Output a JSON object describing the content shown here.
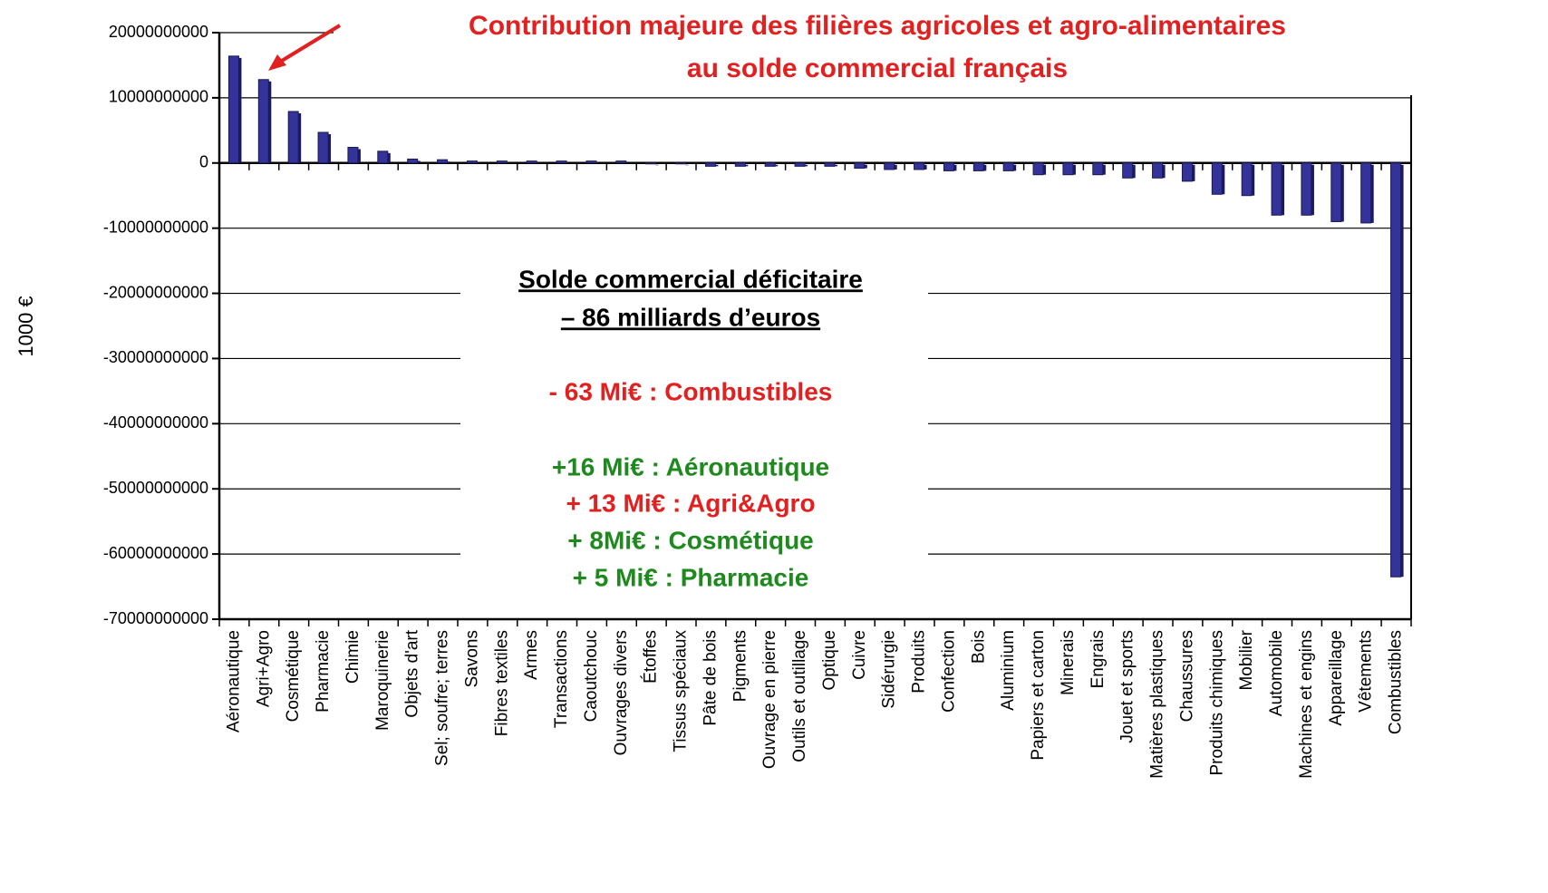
{
  "chart_data": {
    "type": "bar",
    "title": [
      "Contribution majeure des filières agricoles et agro-alimentaires",
      "au solde commercial français"
    ],
    "y_label": "1000 €",
    "categories": [
      "Aéronautique",
      "Agri+Agro",
      "Cosmétique",
      "Pharmacie",
      "Chimie",
      "Maroquinerie",
      "Objets d'art",
      "Sel; soufre; terres",
      "Savons",
      "Fibres textiles",
      "Armes",
      "Transactions",
      "Caoutchouc",
      "Ouvrages divers",
      "Étoffes",
      "Tissus spéciaux",
      "Pâte de bois",
      "Pigments",
      "Ouvrage en pierre",
      "Outils et outillage",
      "Optique",
      "Cuivre",
      "Sidérurgie",
      "Produits",
      "Confection",
      "Bois",
      "Aluminium",
      "Papiers et carton",
      "Minerais",
      "Engrais",
      "Jouet et sports",
      "Matières plastiques",
      "Chaussures",
      "Produits chimiques",
      "Mobilier",
      "Automobile",
      "Machines et engins",
      "Appareillage",
      "Vêtements",
      "Combustibles"
    ],
    "values": [
      16400000000,
      12800000000,
      7900000000,
      4700000000,
      2400000000,
      1800000000,
      600000000,
      500000000,
      300000000,
      300000000,
      300000000,
      300000000,
      300000000,
      300000000,
      0,
      -100000000,
      -500000000,
      -500000000,
      -500000000,
      -500000000,
      -500000000,
      -800000000,
      -1000000000,
      -1000000000,
      -1200000000,
      -1200000000,
      -1200000000,
      -1800000000,
      -1800000000,
      -1800000000,
      -2300000000,
      -2300000000,
      -2800000000,
      -4800000000,
      -5000000000,
      -8000000000,
      -8000000000,
      -9000000000,
      -9200000000,
      -63500000000
    ],
    "color": "#33339a",
    "ylim": [
      -70000000000,
      20000000000
    ],
    "yticks": [
      20000000000,
      10000000000,
      0,
      -10000000000,
      -20000000000,
      -30000000000,
      -40000000000,
      -50000000000,
      -60000000000,
      -70000000000
    ],
    "grid": true,
    "annotations": [
      {
        "text": "Solde commercial déficitaire",
        "color": "#000000",
        "underline": true
      },
      {
        "text": "– 86 milliards d’euros",
        "color": "#000000",
        "underline": true
      },
      {
        "text": "- 63 Mi€ : Combustibles",
        "color": "#e32020"
      },
      {
        "text": "+16 Mi€ : Aéronautique",
        "color": "#1e8a1e"
      },
      {
        "text": "+ 13 Mi€ : Agri&Agro",
        "color": "#e32020"
      },
      {
        "text": "+ 8Mi€ : Cosmétique",
        "color": "#1e8a1e"
      },
      {
        "text": "+ 5 Mi€ : Pharmacie",
        "color": "#1e8a1e"
      }
    ]
  }
}
